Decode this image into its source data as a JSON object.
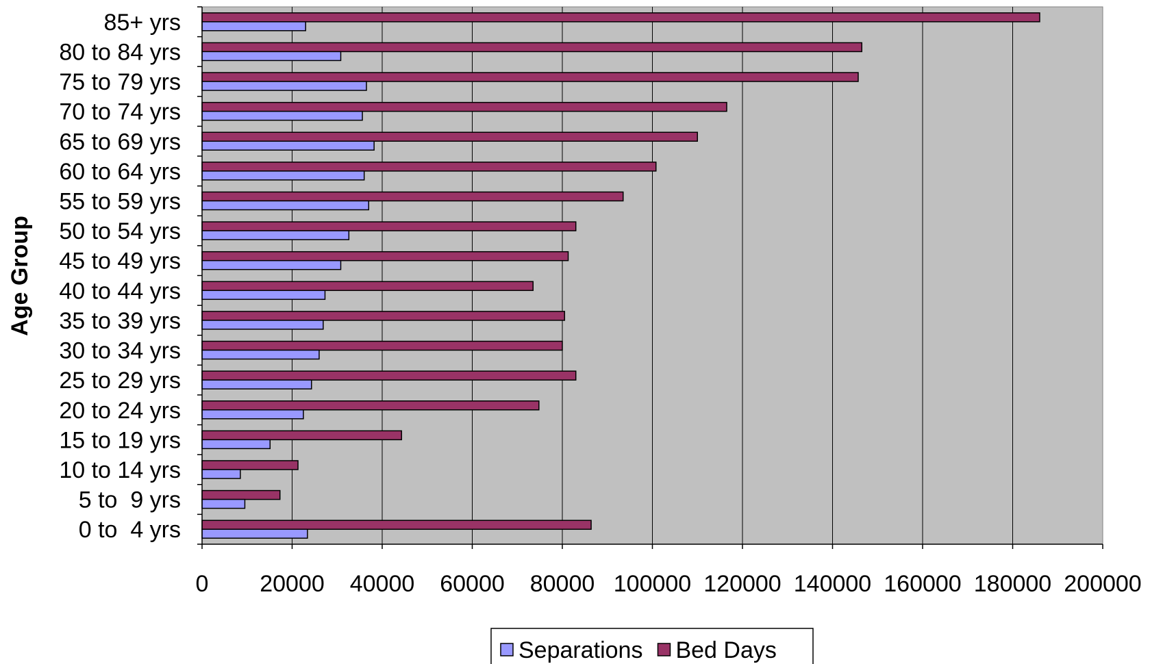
{
  "chart_data": {
    "type": "bar",
    "orientation": "horizontal",
    "title": "",
    "xlabel": "",
    "ylabel": "Age Group",
    "xlim": [
      0,
      200000
    ],
    "x_ticks": [
      "0",
      "20000",
      "40000",
      "60000",
      "80000",
      "100000",
      "120000",
      "140000",
      "160000",
      "180000",
      "200000"
    ],
    "categories": [
      "85+ yrs",
      "80 to 84 yrs",
      "75 to 79 yrs",
      "70 to 74 yrs",
      "65 to 69 yrs",
      "60 to 64 yrs",
      "55 to 59 yrs",
      "50 to 54 yrs",
      "45 to 49 yrs",
      "40 to 44 yrs",
      "35 to 39 yrs",
      "30 to 34 yrs",
      "25 to 29 yrs",
      "20 to 24 yrs",
      "15 to 19 yrs",
      "10 to 14 yrs",
      "5 to  9 yrs",
      "0 to  4 yrs"
    ],
    "series": [
      {
        "name": "Bed Days",
        "color": "#993366",
        "values": [
          186000,
          146500,
          145700,
          116500,
          110000,
          100800,
          93500,
          83000,
          81300,
          73500,
          80500,
          80000,
          83000,
          74800,
          44300,
          21300,
          17300,
          86400
        ]
      },
      {
        "name": "Separations",
        "color": "#9999ff",
        "values": [
          23000,
          30800,
          36500,
          35600,
          38200,
          36000,
          37000,
          32600,
          30800,
          27300,
          26900,
          26000,
          24300,
          22500,
          15100,
          8500,
          9500,
          23400
        ]
      }
    ],
    "legend": {
      "position": "bottom",
      "order": [
        "Separations",
        "Bed Days"
      ]
    },
    "grid": true,
    "plot_background": "#c0c0c0"
  }
}
